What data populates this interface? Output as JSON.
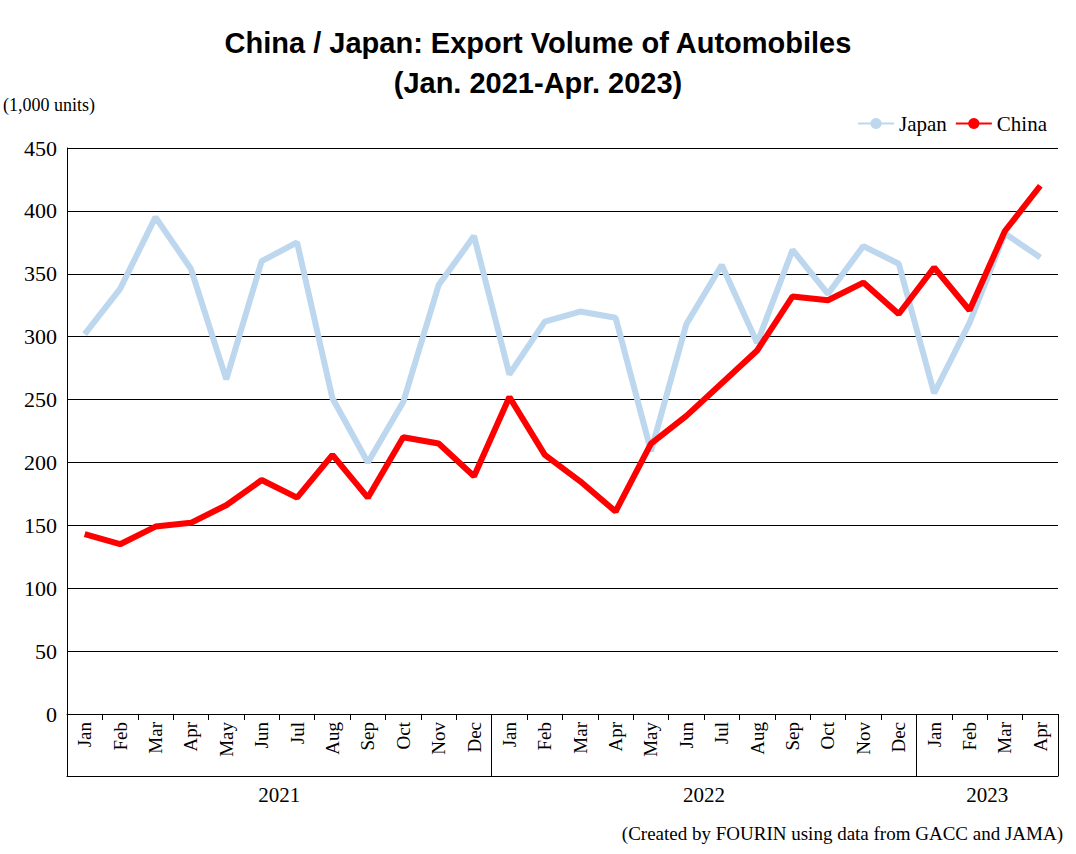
{
  "chart_data": {
    "type": "line",
    "title": "China / Japan: Export Volume of Automobiles\n(Jan. 2021-Apr. 2023)",
    "y_label": "(1,000 units)",
    "source": "(Created by FOURIN using data from GACC and JAMA)",
    "categories": [
      "Jan",
      "Feb",
      "Mar",
      "Apr",
      "May",
      "Jun",
      "Jul",
      "Aug",
      "Sep",
      "Oct",
      "Nov",
      "Dec",
      "Jan",
      "Feb",
      "Mar",
      "Apr",
      "May",
      "Jun",
      "Jul",
      "Aug",
      "Sep",
      "Oct",
      "Nov",
      "Dec",
      "Jan",
      "Feb",
      "Mar",
      "Apr"
    ],
    "category_groups": [
      {
        "label": "2021",
        "span": 12
      },
      {
        "label": "2022",
        "span": 12
      },
      {
        "label": "2023",
        "span": 4
      }
    ],
    "series": [
      {
        "name": "Japan",
        "color": "#bdd7ee",
        "values": [
          302,
          338,
          395,
          354,
          266,
          360,
          375,
          251,
          200,
          248,
          341,
          380,
          270,
          312,
          320,
          315,
          209,
          310,
          357,
          295,
          369,
          334,
          372,
          358,
          255,
          311,
          382,
          363
        ]
      },
      {
        "name": "China",
        "color": "#ff0000",
        "values": [
          143,
          135,
          149,
          152,
          166,
          186,
          172,
          206,
          172,
          220,
          215,
          189,
          252,
          206,
          185,
          161,
          215,
          237,
          263,
          289,
          332,
          329,
          343,
          318,
          355,
          321,
          384,
          420
        ]
      }
    ],
    "ylim": [
      0,
      450
    ],
    "yticks": [
      0,
      50,
      100,
      150,
      200,
      250,
      300,
      350,
      400,
      450
    ],
    "grid": true,
    "legend": "top-right"
  }
}
